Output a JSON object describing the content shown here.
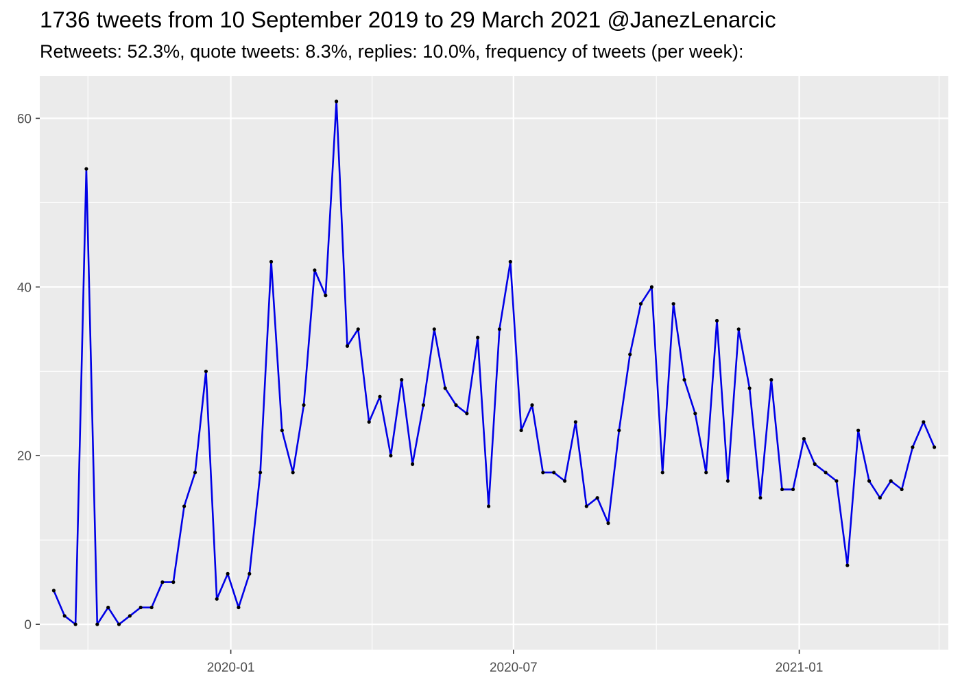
{
  "header": {
    "title": "1736 tweets from 10 September 2019 to 29 March 2021 @JanezLenarcic",
    "subtitle": "Retweets: 52.3%, quote tweets: 8.3%, replies: 10.0%, frequency of tweets (per week):"
  },
  "chart_data": {
    "type": "line",
    "title": "1736 tweets from 10 September 2019 to 29 March 2021 @JanezLenarcic",
    "subtitle": "Retweets: 52.3%, quote tweets: 8.3%, replies: 10.0%, frequency of tweets (per week):",
    "xlabel": "",
    "ylabel": "",
    "x_type": "date",
    "x_ticks": [
      "2020-01",
      "2020-07",
      "2021-01"
    ],
    "y_ticks": [
      0,
      20,
      40,
      60
    ],
    "xlim": [
      "2019-08-31",
      "2021-04-07"
    ],
    "ylim": [
      -3,
      65
    ],
    "grid": true,
    "line_color": "#0000e6",
    "point_color": "#000000",
    "panel_background": "#ebebeb",
    "series": [
      {
        "x": [
          "2019-09-09",
          "2019-09-16",
          "2019-09-23",
          "2019-09-30",
          "2019-10-07",
          "2019-10-14",
          "2019-10-21",
          "2019-10-28",
          "2019-11-04",
          "2019-11-11",
          "2019-11-18",
          "2019-11-25",
          "2019-12-02",
          "2019-12-09",
          "2019-12-16",
          "2019-12-23",
          "2019-12-30",
          "2020-01-06",
          "2020-01-13",
          "2020-01-20",
          "2020-01-27",
          "2020-02-03",
          "2020-02-10",
          "2020-02-17",
          "2020-02-24",
          "2020-03-02",
          "2020-03-09",
          "2020-03-16",
          "2020-03-23",
          "2020-03-30",
          "2020-04-06",
          "2020-04-13",
          "2020-04-20",
          "2020-04-27",
          "2020-05-04",
          "2020-05-11",
          "2020-05-18",
          "2020-05-25",
          "2020-06-01",
          "2020-06-08",
          "2020-06-15",
          "2020-06-22",
          "2020-06-29",
          "2020-07-06",
          "2020-07-13",
          "2020-07-20",
          "2020-07-27",
          "2020-08-03",
          "2020-08-10",
          "2020-08-17",
          "2020-08-24",
          "2020-08-31",
          "2020-09-07",
          "2020-09-14",
          "2020-09-21",
          "2020-09-28",
          "2020-10-05",
          "2020-10-12",
          "2020-10-19",
          "2020-10-26",
          "2020-11-02",
          "2020-11-09",
          "2020-11-16",
          "2020-11-23",
          "2020-11-30",
          "2020-12-07",
          "2020-12-14",
          "2020-12-21",
          "2020-12-28",
          "2021-01-04",
          "2021-01-11",
          "2021-01-18",
          "2021-01-25",
          "2021-02-01",
          "2021-02-08",
          "2021-02-15",
          "2021-02-22",
          "2021-03-01",
          "2021-03-08",
          "2021-03-15",
          "2021-03-22",
          "2021-03-29"
        ],
        "values": [
          4,
          1,
          0,
          54,
          0,
          2,
          0,
          1,
          2,
          2,
          5,
          5,
          14,
          18,
          30,
          3,
          6,
          2,
          6,
          18,
          43,
          23,
          18,
          26,
          42,
          39,
          62,
          33,
          35,
          24,
          27,
          20,
          29,
          19,
          26,
          35,
          28,
          26,
          25,
          34,
          14,
          35,
          43,
          23,
          26,
          18,
          18,
          17,
          24,
          14,
          15,
          12,
          23,
          32,
          38,
          40,
          18,
          38,
          29,
          25,
          18,
          36,
          17,
          35,
          28,
          15,
          29,
          16,
          16,
          22,
          19,
          18,
          17,
          7,
          23,
          17,
          15,
          17,
          16,
          21,
          24,
          21
        ]
      }
    ]
  }
}
